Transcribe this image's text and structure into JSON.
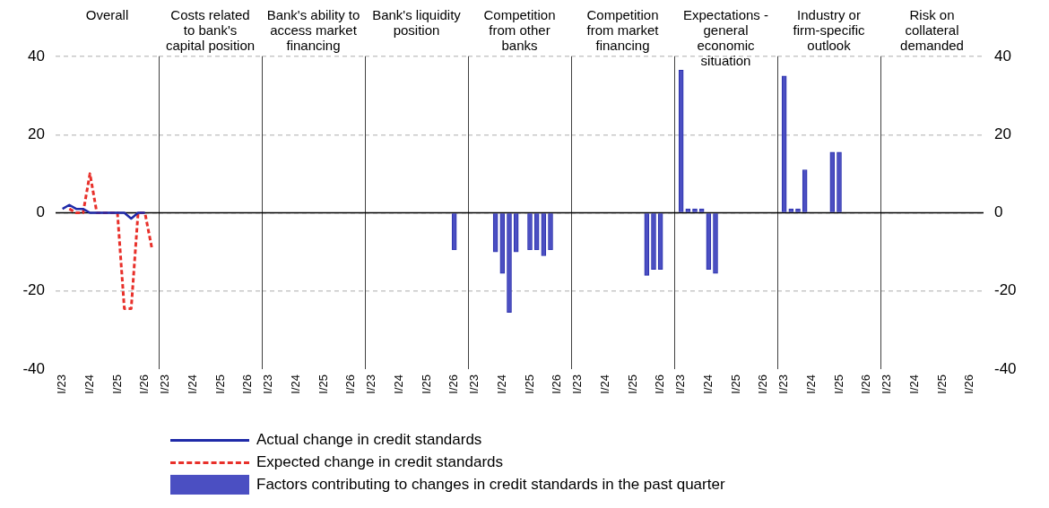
{
  "chart_data": [
    {
      "type": "line",
      "title": "Overall",
      "categories": [
        null,
        "I/23",
        null,
        null,
        null,
        "I/24",
        null,
        null,
        null,
        "I/25",
        null,
        null,
        null,
        "I/26",
        null,
        null
      ],
      "ylim": [
        -40,
        40
      ],
      "yticks": [
        -40,
        -20,
        0,
        20,
        40
      ],
      "grid": "y",
      "legend": "bottom",
      "marker": "none",
      "ref_lines": [
        {
          "axis": "y",
          "value": 0,
          "color": "#000000"
        }
      ],
      "series": [
        {
          "name": "Actual change in credit standards",
          "line_style": "solid",
          "color": "#1f2aa8",
          "values": [
            null,
            1,
            2,
            1,
            1,
            0,
            0,
            0,
            0,
            0,
            0,
            -1.5,
            0,
            0,
            null,
            null
          ]
        },
        {
          "name": "Expected change in credit standards",
          "line_style": "dashed",
          "color": "#e8302a",
          "values": [
            null,
            null,
            1,
            0,
            0,
            10,
            0,
            0,
            0,
            0,
            -24.5,
            -24.5,
            0,
            0,
            -9,
            null
          ]
        }
      ]
    },
    {
      "type": "bar",
      "title": "Costs related to bank's capital position",
      "categories": [
        null,
        "I/23",
        null,
        null,
        null,
        "I/24",
        null,
        null,
        null,
        "I/25",
        null,
        null,
        null,
        "I/26",
        null,
        null
      ],
      "ylim": [
        -40,
        40
      ],
      "yticks": [
        -40,
        -20,
        0,
        20,
        40
      ],
      "grid": "y",
      "tick_labels": "x",
      "ref_lines": [
        {
          "axis": "y",
          "value": 0,
          "color": "#000000"
        }
      ],
      "color": "#4b4fc2",
      "values": [
        null,
        null,
        null,
        null,
        null,
        null,
        null,
        null,
        null,
        null,
        null,
        null,
        null,
        null,
        null,
        null
      ]
    },
    {
      "type": "bar",
      "title": "Bank's ability to access market financing",
      "categories": [
        null,
        "I/23",
        null,
        null,
        null,
        "I/24",
        null,
        null,
        null,
        "I/25",
        null,
        null,
        null,
        "I/26",
        null,
        null
      ],
      "ylim": [
        -40,
        40
      ],
      "yticks": [
        -40,
        -20,
        0,
        20,
        40
      ],
      "grid": "y",
      "tick_labels": "x",
      "ref_lines": [
        {
          "axis": "y",
          "value": 0,
          "color": "#000000"
        }
      ],
      "color": "#4b4fc2",
      "values": [
        null,
        null,
        null,
        null,
        null,
        null,
        null,
        null,
        null,
        null,
        null,
        null,
        null,
        null,
        null,
        null
      ]
    },
    {
      "type": "bar",
      "title": "Bank's liquidity position",
      "categories": [
        null,
        "I/23",
        null,
        null,
        null,
        "I/24",
        null,
        null,
        null,
        "I/25",
        null,
        null,
        null,
        "I/26",
        null,
        null
      ],
      "ylim": [
        -40,
        40
      ],
      "yticks": [
        -40,
        -20,
        0,
        20,
        40
      ],
      "grid": "y",
      "tick_labels": "x",
      "ref_lines": [
        {
          "axis": "y",
          "value": 0,
          "color": "#000000"
        }
      ],
      "color": "#4b4fc2",
      "values": [
        null,
        null,
        null,
        null,
        null,
        null,
        null,
        null,
        null,
        null,
        null,
        null,
        null,
        -9.5,
        null,
        null
      ]
    },
    {
      "type": "bar",
      "title": "Competition from other banks",
      "categories": [
        null,
        "I/23",
        null,
        null,
        null,
        "I/24",
        null,
        null,
        null,
        "I/25",
        null,
        null,
        null,
        "I/26",
        null,
        null
      ],
      "ylim": [
        -40,
        40
      ],
      "yticks": [
        -40,
        -20,
        0,
        20,
        40
      ],
      "grid": "y",
      "tick_labels": "x",
      "ref_lines": [
        {
          "axis": "y",
          "value": 0,
          "color": "#000000"
        }
      ],
      "series": [
        {
          "name": "Factors contributing to changes in credit standards in the past quarter",
          "color": "#4b4fc2",
          "values": [
            null,
            null,
            null,
            null,
            -10,
            -15.5,
            -25.5,
            -10,
            null,
            -9.5,
            -9.5,
            -11,
            -9.5,
            null,
            null,
            null
          ]
        }
      ]
    },
    {
      "type": "bar",
      "title": "Competition from market financing",
      "categories": [
        null,
        "I/23",
        null,
        null,
        null,
        "I/24",
        null,
        null,
        null,
        "I/25",
        null,
        null,
        null,
        "I/26",
        null,
        null
      ],
      "ylim": [
        -40,
        40
      ],
      "yticks": [
        -40,
        -20,
        0,
        20,
        40
      ],
      "grid": "y",
      "tick_labels": "x",
      "ref_lines": [
        {
          "axis": "y",
          "value": 0,
          "color": "#000000"
        }
      ],
      "color": "#4b4fc2",
      "values": [
        null,
        null,
        null,
        null,
        null,
        null,
        null,
        null,
        null,
        null,
        null,
        -16,
        -14.5,
        -14.5,
        null,
        null
      ]
    },
    {
      "type": "bar",
      "title": "Expectations - general economic situation",
      "categories": [
        null,
        "I/23",
        null,
        null,
        null,
        "I/24",
        null,
        null,
        null,
        "I/25",
        null,
        null,
        null,
        "I/26",
        null,
        null
      ],
      "ylim": [
        -40,
        40
      ],
      "yticks": [
        -40,
        -20,
        0,
        20,
        40
      ],
      "grid": "y",
      "tick_labels": "x",
      "ref_lines": [
        {
          "axis": "y",
          "value": 0,
          "color": "#000000"
        }
      ],
      "color": "#4b4fc2",
      "values": [
        null,
        36.5,
        1,
        1,
        1,
        -14.5,
        -15.5,
        null,
        null,
        null,
        null,
        null,
        null,
        null,
        null,
        null
      ]
    },
    {
      "type": "bar",
      "title": "Industry or firm-specific outlook",
      "categories": [
        null,
        "I/23",
        null,
        null,
        null,
        "I/24",
        null,
        null,
        null,
        "I/25",
        null,
        null,
        null,
        "I/26",
        null,
        null
      ],
      "ylim": [
        -40,
        40
      ],
      "yticks": [
        -40,
        -20,
        0,
        20,
        40
      ],
      "grid": "y",
      "tick_labels": "x",
      "ref_lines": [
        {
          "axis": "y",
          "value": 0,
          "color": "#000000"
        }
      ],
      "color": "#4b4fc2",
      "values": [
        null,
        35,
        1,
        1,
        11,
        null,
        null,
        null,
        15.5,
        15.5,
        null,
        null,
        null,
        null,
        null,
        null
      ]
    },
    {
      "type": "bar",
      "title": "Risk on collateral demanded",
      "categories": [
        null,
        "I/23",
        null,
        null,
        null,
        "I/24",
        null,
        null,
        null,
        "I/25",
        null,
        null,
        null,
        "I/26",
        null,
        null
      ],
      "ylim": [
        -40,
        40
      ],
      "yticks": [
        -40,
        -20,
        0,
        20,
        40
      ],
      "grid": "y",
      "ref_lines": [
        {
          "axis": "y",
          "value": 0,
          "color": "#000000"
        }
      ],
      "color": "#4b4fc2",
      "values": [
        null,
        null,
        null,
        null,
        null,
        null,
        null,
        null,
        null,
        null,
        null,
        null,
        null,
        null,
        null,
        null
      ]
    }
  ]
}
